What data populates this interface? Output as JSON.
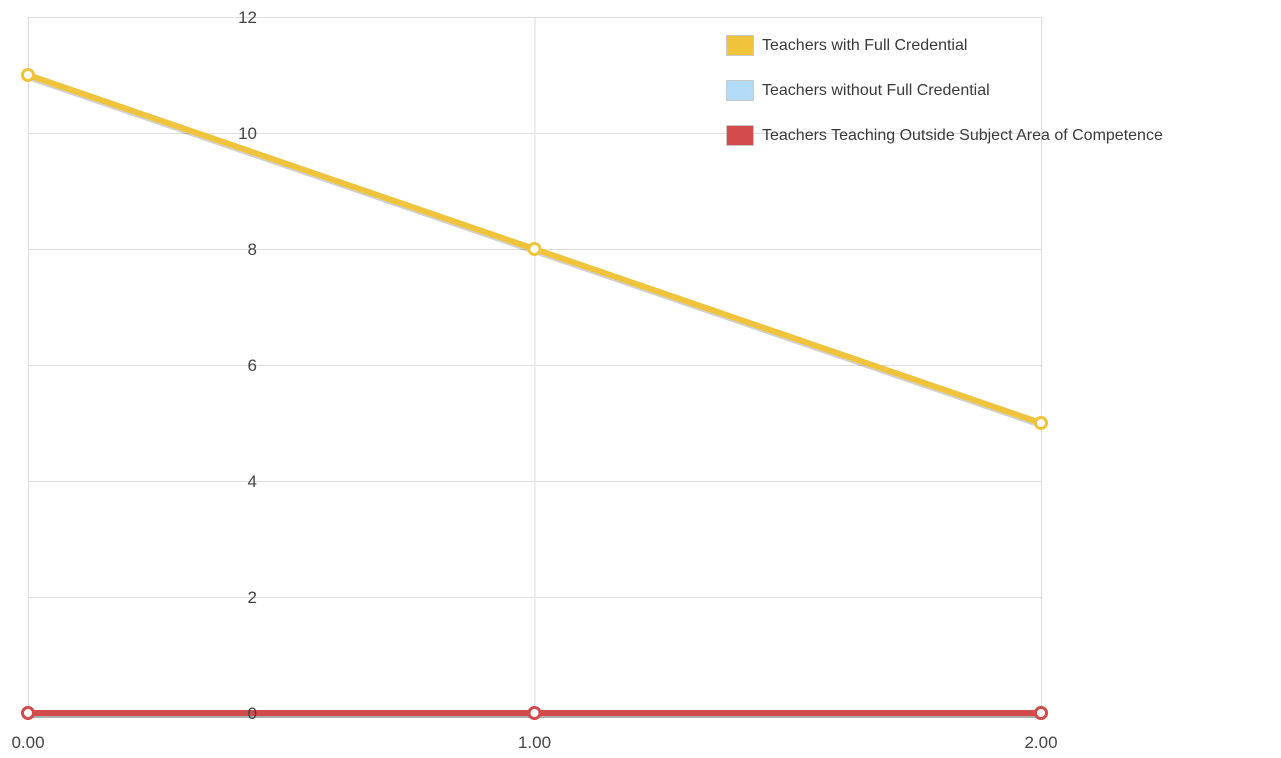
{
  "chart_data": {
    "type": "line",
    "x": [
      0,
      1,
      2
    ],
    "x_tick_labels": [
      "0.00",
      "1.00",
      "2.00"
    ],
    "y_ticks": [
      0,
      2,
      4,
      6,
      8,
      10,
      12
    ],
    "y_tick_labels": [
      "0",
      "2",
      "4",
      "6",
      "8",
      "10",
      "12"
    ],
    "xlim": [
      0,
      2
    ],
    "ylim": [
      0,
      12
    ],
    "grid": true,
    "legend_position": "top-right",
    "series": [
      {
        "name": "Teachers with Full Credential",
        "color": "#f0c33c",
        "values": [
          11,
          8,
          5
        ]
      },
      {
        "name": "Teachers without Full Credential",
        "color": "#b3daf7",
        "values": [
          0,
          0,
          0
        ]
      },
      {
        "name": "Teachers Teaching Outside Subject Area of Competence",
        "color": "#d24a4a",
        "values": [
          0,
          0,
          0
        ]
      }
    ],
    "title": "",
    "xlabel": "",
    "ylabel": ""
  }
}
